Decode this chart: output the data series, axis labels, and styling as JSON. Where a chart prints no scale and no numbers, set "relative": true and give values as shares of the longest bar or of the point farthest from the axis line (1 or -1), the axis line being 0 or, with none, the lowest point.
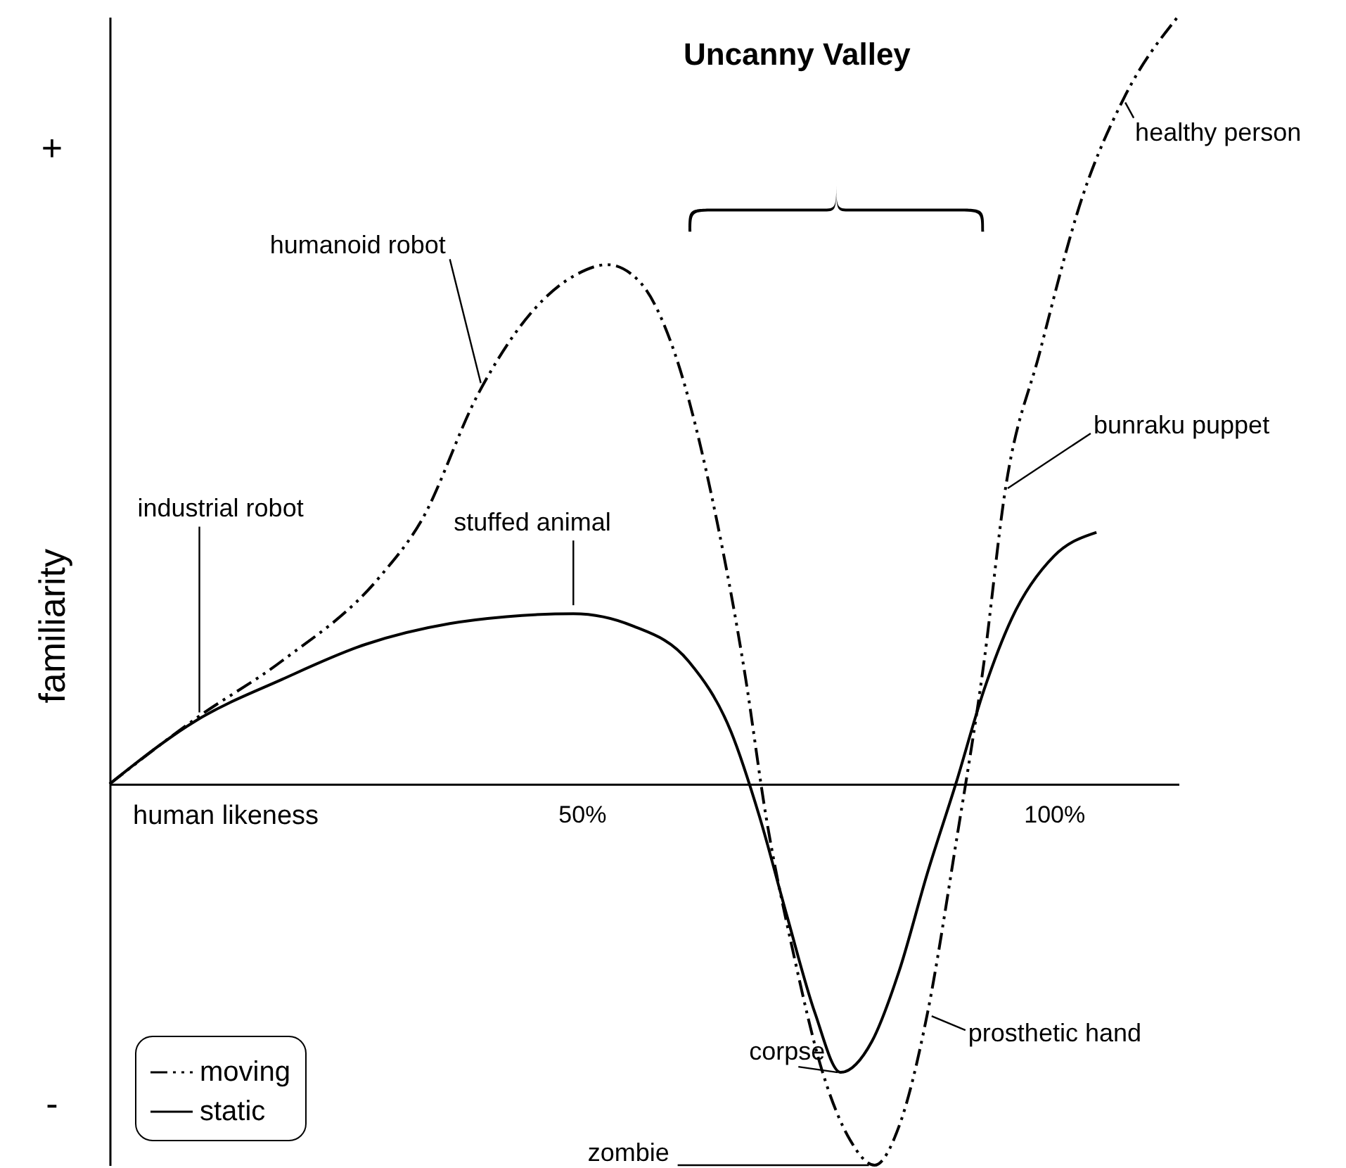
{
  "chart_data": {
    "type": "line",
    "relative": true,
    "title": "Uncanny Valley",
    "xlabel": "human likeness",
    "ylabel": "familiarity",
    "xlim": [
      0,
      113.2
    ],
    "xticks": [
      {
        "value": 50,
        "label": "50%"
      },
      {
        "value": 100,
        "label": "100%"
      }
    ],
    "grid": false,
    "legend": "bottom left",
    "series": [
      {
        "name": "moving",
        "color": "#000000",
        "line_style": "dashed",
        "x": [
          0,
          9.2,
          18.2,
          28.6,
          33,
          39,
          44.9,
          49.4,
          52.7,
          56.1,
          59.8,
          64.3,
          67.3,
          69.5,
          72.5,
          75.4,
          78.4,
          81,
          83.6,
          86.6,
          89.6,
          92.6,
          94.8,
          98.5,
          103,
          107.4,
          113.1
        ],
        "values": [
          0,
          0.086,
          0.16,
          0.27,
          0.343,
          0.508,
          0.618,
          0.664,
          0.677,
          0.655,
          0.563,
          0.343,
          0.141,
          -0.042,
          -0.226,
          -0.372,
          -0.464,
          -0.497,
          -0.446,
          -0.299,
          -0.079,
          0.16,
          0.38,
          0.563,
          0.765,
          0.894,
          1
        ]
      },
      {
        "name": "static",
        "color": "#000000",
        "line_style": "solid",
        "x": [
          0,
          9.2,
          18.2,
          27.1,
          36,
          42,
          49.1,
          55.4,
          61.3,
          65.8,
          68.8,
          71.7,
          74.7,
          77.4,
          80.7,
          83.6,
          86.6,
          89.6,
          92.6,
          95.5,
          100,
          104.5
        ],
        "values": [
          0,
          0.083,
          0.136,
          0.182,
          0.209,
          0.218,
          0.222,
          0.206,
          0.16,
          0.068,
          -0.042,
          -0.171,
          -0.299,
          -0.376,
          -0.336,
          -0.244,
          -0.116,
          0,
          0.123,
          0.215,
          0.297,
          0.328
        ]
      }
    ],
    "annotations": [
      "+",
      "-",
      {
        "text": "industrial robot",
        "x": 9.2,
        "y": 0.086
      },
      {
        "text": "humanoid robot",
        "x": 39,
        "y": 0.508
      },
      {
        "text": "stuffed animal",
        "x": 49.1,
        "y": 0.222
      },
      {
        "text": "healthy person",
        "x": 107.4,
        "y": 0.894
      },
      {
        "text": "bunraku puppet",
        "x": 94.8,
        "y": 0.38
      },
      {
        "text": "corpse",
        "x": 77.4,
        "y": -0.376
      },
      {
        "text": "prosthetic hand",
        "x": 86.6,
        "y": -0.299
      },
      {
        "text": "zombie",
        "x": 81,
        "y": -0.497
      }
    ]
  }
}
